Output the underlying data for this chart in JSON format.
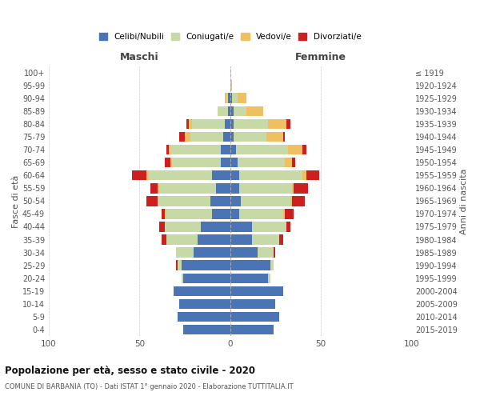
{
  "age_groups": [
    "0-4",
    "5-9",
    "10-14",
    "15-19",
    "20-24",
    "25-29",
    "30-34",
    "35-39",
    "40-44",
    "45-49",
    "50-54",
    "55-59",
    "60-64",
    "65-69",
    "70-74",
    "75-79",
    "80-84",
    "85-89",
    "90-94",
    "95-99",
    "100+"
  ],
  "birth_years": [
    "2015-2019",
    "2010-2014",
    "2005-2009",
    "2000-2004",
    "1995-1999",
    "1990-1994",
    "1985-1989",
    "1980-1984",
    "1975-1979",
    "1970-1974",
    "1965-1969",
    "1960-1964",
    "1955-1959",
    "1950-1954",
    "1945-1949",
    "1940-1944",
    "1935-1939",
    "1930-1934",
    "1925-1929",
    "1920-1924",
    "≤ 1919"
  ],
  "maschi": {
    "celibi": [
      26,
      29,
      28,
      31,
      26,
      27,
      20,
      18,
      16,
      10,
      11,
      8,
      10,
      5,
      5,
      4,
      3,
      1,
      1,
      0,
      0
    ],
    "coniugati": [
      0,
      0,
      0,
      0,
      1,
      2,
      10,
      17,
      20,
      25,
      29,
      31,
      35,
      27,
      28,
      18,
      18,
      6,
      1,
      0,
      0
    ],
    "vedovi": [
      0,
      0,
      0,
      0,
      0,
      0,
      0,
      0,
      0,
      1,
      0,
      1,
      1,
      1,
      1,
      3,
      2,
      0,
      1,
      0,
      0
    ],
    "divorziati": [
      0,
      0,
      0,
      0,
      0,
      1,
      0,
      3,
      3,
      2,
      6,
      4,
      8,
      3,
      1,
      3,
      1,
      0,
      0,
      0,
      0
    ]
  },
  "femmine": {
    "nubili": [
      24,
      27,
      25,
      29,
      21,
      22,
      15,
      12,
      12,
      5,
      6,
      5,
      5,
      4,
      3,
      2,
      2,
      2,
      1,
      0,
      0
    ],
    "coniugate": [
      0,
      0,
      0,
      0,
      1,
      2,
      9,
      15,
      19,
      24,
      27,
      29,
      35,
      26,
      29,
      18,
      19,
      7,
      3,
      0,
      0
    ],
    "vedove": [
      0,
      0,
      0,
      0,
      0,
      0,
      0,
      0,
      0,
      1,
      1,
      1,
      2,
      4,
      8,
      9,
      10,
      9,
      5,
      1,
      0
    ],
    "divorziate": [
      0,
      0,
      0,
      0,
      0,
      0,
      1,
      2,
      2,
      5,
      7,
      8,
      7,
      2,
      2,
      1,
      2,
      0,
      0,
      0,
      0
    ]
  },
  "colors": {
    "celibi": "#4a74b4",
    "coniugati": "#c8d9a8",
    "vedovi": "#f0c060",
    "divorziati": "#cc2020"
  },
  "xlim": 100,
  "title": "Popolazione per età, sesso e stato civile - 2020",
  "subtitle": "COMUNE DI BARBANIA (TO) - Dati ISTAT 1° gennaio 2020 - Elaborazione TUTTITALIA.IT",
  "xlabel_left": "Maschi",
  "xlabel_right": "Femmine",
  "ylabel_left": "Fasce di età",
  "ylabel_right": "Anni di nascita",
  "legend_labels": [
    "Celibi/Nubili",
    "Coniugati/e",
    "Vedovi/e",
    "Divorziati/e"
  ],
  "background_color": "#ffffff"
}
